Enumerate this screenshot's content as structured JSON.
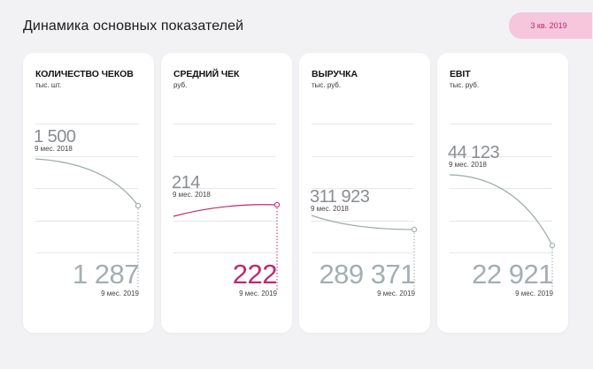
{
  "page_title": "Динамика основных показателей",
  "period": "3 кв. 2019",
  "colors": {
    "curve_neutral": "#9aaba5",
    "curve_accent": "#c4266e",
    "value_neutral": "#a4aeb3",
    "badge_bg": "#f6c6dd"
  },
  "cards": [
    {
      "title": "КОЛИЧЕСТВО ЧЕКОВ",
      "unit": "тыс. шт.",
      "prev_value": "1 500",
      "prev_label": "9 мес. 2018",
      "curr_value": "1 287",
      "curr_label": "9 мес. 2019",
      "accent": false
    },
    {
      "title": "СРЕДНИЙ ЧЕК",
      "unit": "руб.",
      "prev_value": "214",
      "prev_label": "9 мес. 2018",
      "curr_value": "222",
      "curr_label": "9 мес. 2019",
      "accent": true
    },
    {
      "title": "ВЫРУЧКА",
      "unit": "тыс. руб.",
      "prev_value": "311 923",
      "prev_label": "9 мес. 2018",
      "curr_value": "289 371",
      "curr_label": "9 мес. 2019",
      "accent": false
    },
    {
      "title": "EBIT",
      "unit": "тыс. руб.",
      "prev_value": "44 123",
      "prev_label": "9 мес. 2018",
      "curr_value": "22 921",
      "curr_label": "9 мес. 2019",
      "accent": false
    }
  ]
}
